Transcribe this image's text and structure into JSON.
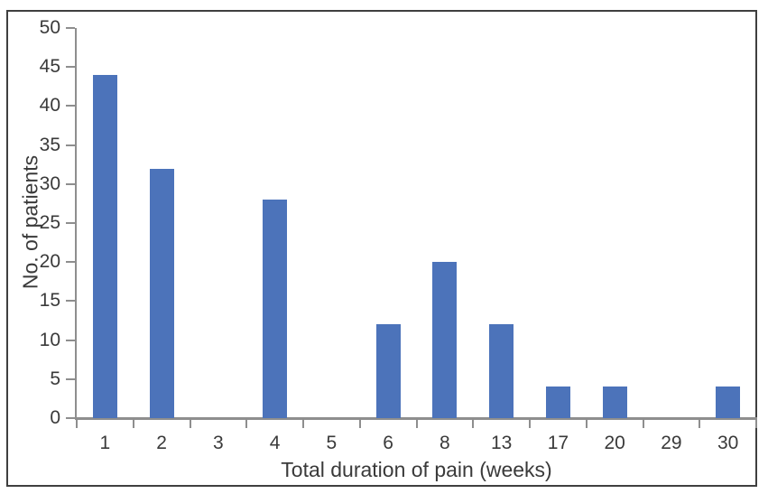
{
  "figure": {
    "background_color": "#ffffff",
    "frame_color": "#3f3f3f"
  },
  "chart_data": {
    "type": "bar",
    "title": "",
    "xlabel": "Total duration of pain (weeks)",
    "ylabel": "No. of patients",
    "categories": [
      "1",
      "2",
      "3",
      "4",
      "5",
      "6",
      "8",
      "13",
      "17",
      "20",
      "29",
      "30"
    ],
    "values": [
      44,
      32,
      0,
      28,
      0,
      12,
      20,
      12,
      4,
      4,
      0,
      4
    ],
    "ylim": [
      0,
      50
    ],
    "ytick_step": 5,
    "yticks": [
      0,
      5,
      10,
      15,
      20,
      25,
      30,
      35,
      40,
      45,
      50
    ],
    "bar_color": "#4c73ba",
    "axis_color": "#8e8e8e",
    "text_color": "#3a3a3a",
    "grid": "off",
    "legend": "none"
  }
}
